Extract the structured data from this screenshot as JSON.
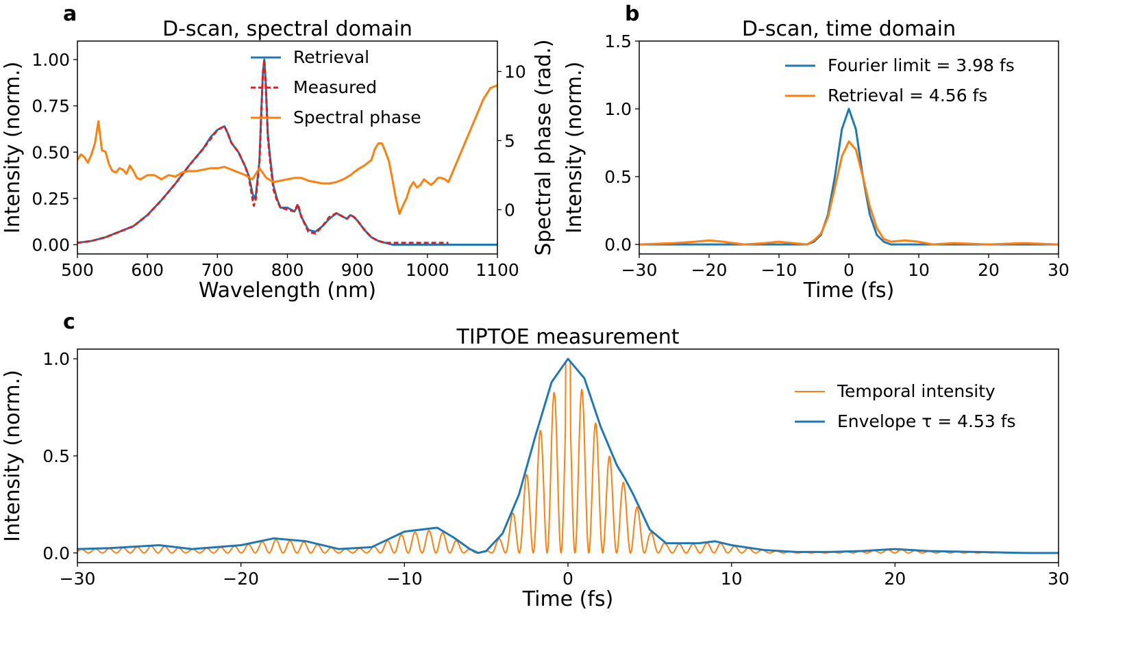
{
  "colors": {
    "blue": "#1f77b4",
    "orange": "#ff7f0e",
    "red": "#e41a1c"
  },
  "chart_data": [
    {
      "panel_label": "a",
      "type": "line",
      "title": "D-scan, spectral domain",
      "xlabel": "Wavelength (nm)",
      "ylabel": "Intensity (norm.)",
      "y2label": "Spectral phase (rad.)",
      "xlim": [
        500,
        1100
      ],
      "ylim": [
        -0.05,
        1.1
      ],
      "y2lim": [
        -3.2,
        12.2
      ],
      "xticks": [
        500,
        600,
        700,
        800,
        900,
        1000,
        1100
      ],
      "yticks": [
        0.0,
        0.25,
        0.5,
        0.75,
        1.0
      ],
      "ytick_labels": [
        "0.00",
        "0.25",
        "0.50",
        "0.75",
        "1.00"
      ],
      "y2ticks": [
        0,
        5,
        10
      ],
      "legend_position": "top-right",
      "series": [
        {
          "name": "Retrieval",
          "color": "#1f77b4",
          "dash": "solid",
          "axis": "left",
          "x": [
            500,
            520,
            540,
            560,
            580,
            600,
            620,
            640,
            660,
            680,
            690,
            700,
            705,
            710,
            715,
            720,
            730,
            740,
            745,
            750,
            752,
            755,
            760,
            763,
            765,
            767,
            769,
            772,
            775,
            780,
            785,
            790,
            800,
            810,
            815,
            820,
            830,
            840,
            850,
            860,
            870,
            880,
            885,
            890,
            895,
            900,
            910,
            920,
            930,
            940,
            950,
            1000,
            1100
          ],
          "y": [
            0.01,
            0.02,
            0.04,
            0.07,
            0.1,
            0.16,
            0.24,
            0.33,
            0.43,
            0.52,
            0.58,
            0.62,
            0.63,
            0.64,
            0.6,
            0.55,
            0.5,
            0.42,
            0.37,
            0.28,
            0.25,
            0.27,
            0.45,
            0.75,
            0.93,
            1.0,
            0.88,
            0.6,
            0.48,
            0.32,
            0.25,
            0.2,
            0.2,
            0.18,
            0.21,
            0.15,
            0.08,
            0.07,
            0.1,
            0.14,
            0.17,
            0.15,
            0.14,
            0.16,
            0.15,
            0.13,
            0.08,
            0.04,
            0.02,
            0.01,
            0.0,
            0.0,
            0.0
          ]
        },
        {
          "name": "Measured",
          "color": "#e41a1c",
          "dash": "dashed",
          "axis": "left",
          "x": [
            500,
            520,
            540,
            560,
            580,
            600,
            620,
            640,
            660,
            680,
            690,
            700,
            705,
            710,
            715,
            720,
            730,
            740,
            745,
            750,
            752,
            755,
            760,
            763,
            765,
            767,
            769,
            772,
            775,
            780,
            785,
            790,
            800,
            810,
            815,
            820,
            830,
            840,
            850,
            860,
            870,
            880,
            885,
            890,
            895,
            900,
            910,
            920,
            930,
            940,
            950,
            1000,
            1030
          ],
          "y": [
            0.01,
            0.02,
            0.04,
            0.07,
            0.1,
            0.16,
            0.24,
            0.33,
            0.43,
            0.52,
            0.57,
            0.62,
            0.63,
            0.64,
            0.6,
            0.55,
            0.5,
            0.42,
            0.36,
            0.25,
            0.21,
            0.25,
            0.44,
            0.74,
            0.93,
            1.0,
            0.86,
            0.58,
            0.46,
            0.3,
            0.24,
            0.2,
            0.19,
            0.18,
            0.22,
            0.15,
            0.07,
            0.06,
            0.1,
            0.15,
            0.17,
            0.15,
            0.14,
            0.16,
            0.15,
            0.13,
            0.08,
            0.04,
            0.02,
            0.01,
            0.01,
            0.01,
            0.01
          ]
        },
        {
          "name": "Spectral phase",
          "color": "#ff7f0e",
          "dash": "solid",
          "axis": "right",
          "x": [
            500,
            505,
            510,
            515,
            520,
            525,
            530,
            535,
            540,
            545,
            550,
            555,
            560,
            565,
            570,
            575,
            580,
            585,
            590,
            600,
            610,
            620,
            630,
            640,
            650,
            660,
            670,
            680,
            690,
            700,
            710,
            720,
            730,
            740,
            750,
            760,
            770,
            780,
            790,
            800,
            810,
            820,
            830,
            840,
            850,
            860,
            870,
            880,
            890,
            900,
            910,
            920,
            925,
            930,
            935,
            940,
            945,
            950,
            955,
            960,
            965,
            970,
            975,
            980,
            985,
            990,
            995,
            1000,
            1005,
            1010,
            1015,
            1020,
            1025,
            1030,
            1040,
            1050,
            1060,
            1070,
            1080,
            1090,
            1100
          ],
          "y": [
            3.6,
            4.0,
            3.8,
            3.4,
            4.0,
            4.8,
            6.4,
            4.3,
            4.2,
            3.3,
            2.8,
            2.7,
            3.0,
            2.9,
            2.6,
            3.2,
            2.8,
            2.3,
            2.2,
            2.5,
            2.5,
            2.2,
            2.5,
            2.4,
            2.7,
            2.8,
            2.8,
            2.9,
            3.0,
            3.0,
            3.1,
            2.9,
            2.7,
            2.5,
            2.2,
            3.0,
            2.3,
            2.0,
            2.1,
            2.2,
            2.3,
            2.3,
            2.1,
            2.0,
            1.9,
            1.9,
            2.0,
            2.2,
            2.5,
            2.9,
            3.2,
            3.6,
            4.4,
            4.8,
            4.8,
            4.2,
            3.5,
            2.2,
            0.8,
            -0.3,
            0.3,
            0.8,
            1.6,
            2.0,
            1.6,
            1.8,
            2.2,
            2.0,
            1.8,
            2.0,
            2.3,
            2.3,
            2.2,
            2.0,
            3.2,
            4.4,
            5.6,
            6.8,
            8.0,
            8.8,
            9.0
          ]
        }
      ]
    },
    {
      "panel_label": "b",
      "type": "line",
      "title": "D-scan, time domain",
      "xlabel": "Time (fs)",
      "ylabel": "Intensity (norm.)",
      "xlim": [
        -30,
        30
      ],
      "ylim": [
        -0.07,
        1.5
      ],
      "xticks": [
        -30,
        -20,
        -10,
        0,
        10,
        20,
        30
      ],
      "xtick_labels": [
        "−30",
        "−20",
        "−10",
        "0",
        "10",
        "20",
        "30"
      ],
      "yticks": [
        0.0,
        0.5,
        1.0,
        1.5
      ],
      "ytick_labels": [
        "0.0",
        "0.5",
        "1.0",
        "1.5"
      ],
      "legend_position": "top-right",
      "series": [
        {
          "name": "Fourier limit = 3.98 fs",
          "color": "#1f77b4",
          "x": [
            -30,
            -20,
            -10,
            -6,
            -5,
            -4,
            -3,
            -2,
            -1,
            0,
            1,
            2,
            3,
            4,
            5,
            6,
            10,
            20,
            30
          ],
          "y": [
            0.0,
            0.0,
            0.0,
            0.0,
            0.02,
            0.07,
            0.22,
            0.5,
            0.85,
            1.0,
            0.85,
            0.5,
            0.22,
            0.07,
            0.02,
            0.0,
            0.0,
            0.0,
            0.0
          ]
        },
        {
          "name": "Retrieval = 4.56 fs",
          "color": "#ff7f0e",
          "x": [
            -30,
            -25,
            -22,
            -20,
            -18,
            -15,
            -12,
            -10,
            -8,
            -6,
            -5,
            -4,
            -3,
            -2,
            -1,
            0,
            1,
            2,
            3,
            4,
            5,
            6,
            8,
            10,
            12,
            15,
            20,
            25,
            30
          ],
          "y": [
            0.0,
            0.01,
            0.02,
            0.03,
            0.02,
            0.0,
            0.01,
            0.02,
            0.01,
            0.0,
            0.03,
            0.08,
            0.2,
            0.42,
            0.65,
            0.76,
            0.7,
            0.5,
            0.28,
            0.12,
            0.04,
            0.02,
            0.03,
            0.02,
            0.0,
            0.01,
            0.0,
            0.01,
            0.0
          ]
        }
      ]
    },
    {
      "panel_label": "c",
      "type": "line",
      "title": "TIPTOE measurement",
      "xlabel": "Time (fs)",
      "ylabel": "Intensity (norm.)",
      "xlim": [
        -30,
        30
      ],
      "ylim": [
        -0.05,
        1.05
      ],
      "xticks": [
        -30,
        -20,
        -10,
        0,
        10,
        20,
        30
      ],
      "xtick_labels": [
        "−30",
        "−20",
        "−10",
        "0",
        "10",
        "20",
        "30"
      ],
      "yticks": [
        0.0,
        0.5,
        1.0
      ],
      "ytick_labels": [
        "0.0",
        "0.5",
        "1.0"
      ],
      "legend_position": "top-right",
      "series": [
        {
          "name": "Temporal intensity",
          "color": "#ff7f0e",
          "note_period_fs": 0.85
        },
        {
          "name": "Envelope τ = 4.53 fs",
          "color": "#1f77b4",
          "x": [
            -30,
            -28,
            -25,
            -23,
            -20,
            -18,
            -16,
            -14,
            -12,
            -10,
            -8,
            -7,
            -6,
            -5.5,
            -5,
            -4,
            -3,
            -2,
            -1,
            0,
            1,
            2,
            3,
            3.5,
            4,
            5,
            6,
            8,
            9,
            10,
            12,
            14,
            16,
            18,
            20,
            22,
            25,
            28,
            30
          ],
          "y": [
            0.02,
            0.025,
            0.04,
            0.02,
            0.04,
            0.075,
            0.06,
            0.02,
            0.03,
            0.11,
            0.13,
            0.08,
            0.02,
            0.0,
            0.01,
            0.1,
            0.3,
            0.6,
            0.88,
            1.0,
            0.9,
            0.65,
            0.45,
            0.38,
            0.3,
            0.12,
            0.05,
            0.05,
            0.06,
            0.04,
            0.015,
            0.005,
            0.005,
            0.01,
            0.02,
            0.01,
            0.005,
            0.0,
            0.0
          ]
        }
      ]
    }
  ]
}
